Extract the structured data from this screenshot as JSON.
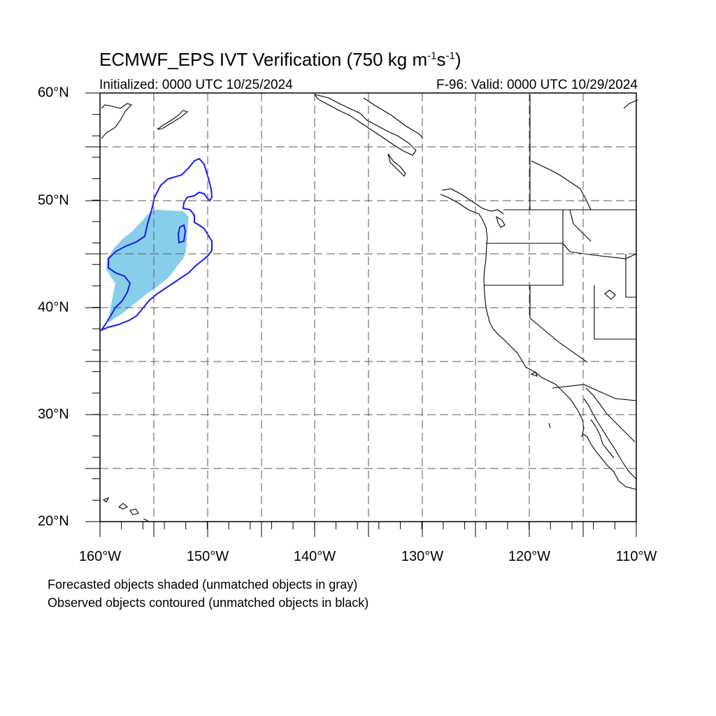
{
  "title": {
    "prefix": "ECMWF_EPS IVT Verification (750 kg m",
    "exp1": "-1",
    "middle": "s",
    "exp2": "-1",
    "suffix": ")"
  },
  "initialized": "Initialized: 0000 UTC 10/25/2024",
  "valid": "F-96: Valid: 0000 UTC 10/29/2024",
  "map": {
    "lon_range": [
      -160,
      -110
    ],
    "lat_range": [
      20,
      60
    ],
    "lat_labels": [
      "20°N",
      "30°N",
      "40°N",
      "50°N",
      "60°N"
    ],
    "lon_labels": [
      "160°W",
      "150°W",
      "140°W",
      "130°W",
      "120°W",
      "110°W"
    ],
    "forecast_fill_color": "#87ceeb",
    "observed_contour_color": "#1a1aee"
  },
  "legend": {
    "line1": "Forecasted objects shaded (unmatched objects in gray)",
    "line2": "Observed objects contoured (unmatched objects in black)"
  }
}
